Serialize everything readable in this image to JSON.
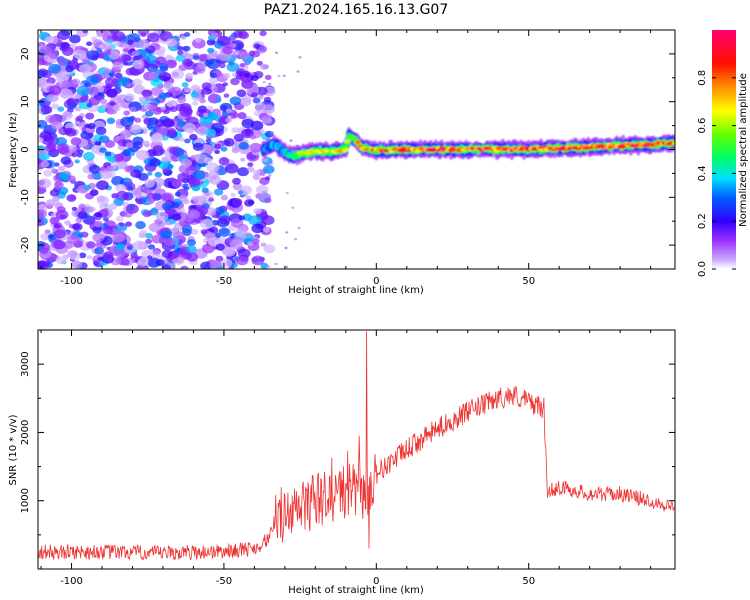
{
  "title": "PAZ1.2024.165.16.13.G07",
  "chart_data": [
    {
      "type": "heatmap",
      "xlabel": "Height of straight line (km)",
      "ylabel": "Frequency (Hz)",
      "xlim": [
        -111,
        98
      ],
      "ylim": [
        -25,
        25
      ],
      "xticks": [
        -100,
        -50,
        0,
        50
      ],
      "yticks": [
        -20,
        -10,
        0,
        10,
        20
      ],
      "colorbar": {
        "label": "Normalized spectral amplitude",
        "range": [
          0,
          1
        ],
        "ticks": [
          0.0,
          0.2,
          0.4,
          0.6,
          0.8
        ],
        "colors": [
          "#ffffff",
          "#c9a8ff",
          "#9b30ff",
          "#4400ff",
          "#0000ff",
          "#0080ff",
          "#00ffff",
          "#00ff40",
          "#80ff00",
          "#ffff00",
          "#ff8000",
          "#ff0000",
          "#ff0060"
        ]
      },
      "noise_region_x": [
        -111,
        -37
      ],
      "noise_amplitude_typical": 0.15,
      "signal_track": {
        "x": [
          -37,
          -33,
          -30,
          -28,
          -25,
          -20,
          -15,
          -10,
          -9,
          -7,
          -5,
          0,
          10,
          20,
          30,
          40,
          50,
          60,
          70,
          80,
          90,
          98
        ],
        "freq": [
          0,
          1.2,
          -0.8,
          -1.2,
          -1.0,
          -0.3,
          -0.5,
          0.0,
          3.0,
          2.0,
          0.5,
          -0.2,
          0.0,
          0.0,
          0.0,
          0.1,
          0.0,
          0.3,
          0.5,
          0.8,
          1.0,
          1.5
        ],
        "amplitude": [
          0.3,
          0.35,
          0.35,
          0.45,
          0.55,
          0.6,
          0.65,
          0.65,
          0.5,
          0.6,
          0.75,
          0.8,
          0.85,
          0.85,
          0.85,
          0.9,
          0.9,
          0.9,
          0.9,
          0.95,
          0.9,
          0.8
        ]
      }
    },
    {
      "type": "line",
      "xlabel": "Height of straight line (km)",
      "ylabel": "SNR (10 * v/v)",
      "xlim": [
        -111,
        98
      ],
      "ylim": [
        0,
        3500
      ],
      "xticks": [
        -100,
        -50,
        0,
        50
      ],
      "yticks": [
        1000,
        2000,
        3000
      ],
      "color": "#ee3333",
      "series": [
        {
          "x": [
            -111,
            -90,
            -70,
            -50,
            -40,
            -35,
            -32,
            -30,
            -25,
            -20,
            -15,
            -10,
            -5,
            -2,
            0,
            10,
            20,
            30,
            40,
            45,
            50,
            55,
            56,
            57,
            60,
            70,
            80,
            90,
            98
          ],
          "values": [
            250,
            250,
            230,
            260,
            300,
            450,
            900,
            700,
            900,
            1000,
            1050,
            1150,
            1100,
            1200,
            1400,
            1750,
            2050,
            2300,
            2500,
            2550,
            2450,
            2350,
            1150,
            1150,
            1200,
            1100,
            1100,
            1000,
            900
          ]
        }
      ]
    }
  ]
}
